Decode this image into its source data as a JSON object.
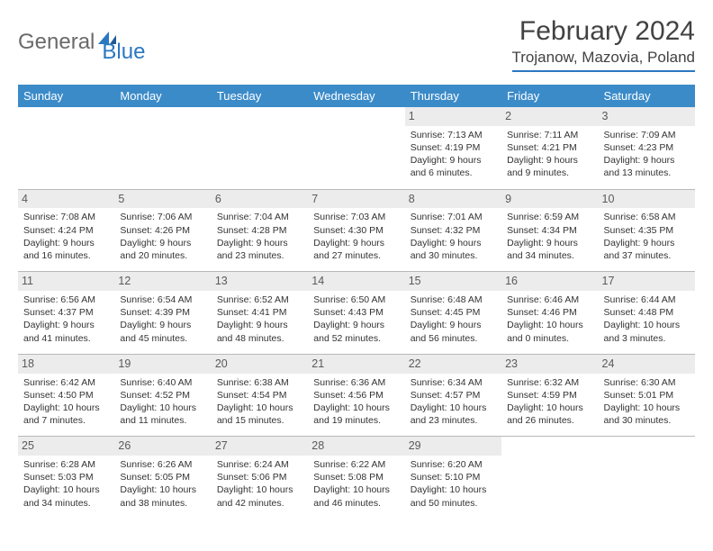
{
  "logo": {
    "part1": "General",
    "part2": "Blue"
  },
  "title": "February 2024",
  "location": "Trojanow, Mazovia, Poland",
  "colors": {
    "header_bg": "#3b8bc9",
    "header_text": "#ffffff",
    "accent": "#2b78c2",
    "daynum_bg": "#ececec",
    "text": "#333333",
    "divider": "#b9b9b9"
  },
  "weekdays": [
    "Sunday",
    "Monday",
    "Tuesday",
    "Wednesday",
    "Thursday",
    "Friday",
    "Saturday"
  ],
  "weeks": [
    [
      null,
      null,
      null,
      null,
      {
        "n": "1",
        "sr": "Sunrise: 7:13 AM",
        "ss": "Sunset: 4:19 PM",
        "dl1": "Daylight: 9 hours",
        "dl2": "and 6 minutes."
      },
      {
        "n": "2",
        "sr": "Sunrise: 7:11 AM",
        "ss": "Sunset: 4:21 PM",
        "dl1": "Daylight: 9 hours",
        "dl2": "and 9 minutes."
      },
      {
        "n": "3",
        "sr": "Sunrise: 7:09 AM",
        "ss": "Sunset: 4:23 PM",
        "dl1": "Daylight: 9 hours",
        "dl2": "and 13 minutes."
      }
    ],
    [
      {
        "n": "4",
        "sr": "Sunrise: 7:08 AM",
        "ss": "Sunset: 4:24 PM",
        "dl1": "Daylight: 9 hours",
        "dl2": "and 16 minutes."
      },
      {
        "n": "5",
        "sr": "Sunrise: 7:06 AM",
        "ss": "Sunset: 4:26 PM",
        "dl1": "Daylight: 9 hours",
        "dl2": "and 20 minutes."
      },
      {
        "n": "6",
        "sr": "Sunrise: 7:04 AM",
        "ss": "Sunset: 4:28 PM",
        "dl1": "Daylight: 9 hours",
        "dl2": "and 23 minutes."
      },
      {
        "n": "7",
        "sr": "Sunrise: 7:03 AM",
        "ss": "Sunset: 4:30 PM",
        "dl1": "Daylight: 9 hours",
        "dl2": "and 27 minutes."
      },
      {
        "n": "8",
        "sr": "Sunrise: 7:01 AM",
        "ss": "Sunset: 4:32 PM",
        "dl1": "Daylight: 9 hours",
        "dl2": "and 30 minutes."
      },
      {
        "n": "9",
        "sr": "Sunrise: 6:59 AM",
        "ss": "Sunset: 4:34 PM",
        "dl1": "Daylight: 9 hours",
        "dl2": "and 34 minutes."
      },
      {
        "n": "10",
        "sr": "Sunrise: 6:58 AM",
        "ss": "Sunset: 4:35 PM",
        "dl1": "Daylight: 9 hours",
        "dl2": "and 37 minutes."
      }
    ],
    [
      {
        "n": "11",
        "sr": "Sunrise: 6:56 AM",
        "ss": "Sunset: 4:37 PM",
        "dl1": "Daylight: 9 hours",
        "dl2": "and 41 minutes."
      },
      {
        "n": "12",
        "sr": "Sunrise: 6:54 AM",
        "ss": "Sunset: 4:39 PM",
        "dl1": "Daylight: 9 hours",
        "dl2": "and 45 minutes."
      },
      {
        "n": "13",
        "sr": "Sunrise: 6:52 AM",
        "ss": "Sunset: 4:41 PM",
        "dl1": "Daylight: 9 hours",
        "dl2": "and 48 minutes."
      },
      {
        "n": "14",
        "sr": "Sunrise: 6:50 AM",
        "ss": "Sunset: 4:43 PM",
        "dl1": "Daylight: 9 hours",
        "dl2": "and 52 minutes."
      },
      {
        "n": "15",
        "sr": "Sunrise: 6:48 AM",
        "ss": "Sunset: 4:45 PM",
        "dl1": "Daylight: 9 hours",
        "dl2": "and 56 minutes."
      },
      {
        "n": "16",
        "sr": "Sunrise: 6:46 AM",
        "ss": "Sunset: 4:46 PM",
        "dl1": "Daylight: 10 hours",
        "dl2": "and 0 minutes."
      },
      {
        "n": "17",
        "sr": "Sunrise: 6:44 AM",
        "ss": "Sunset: 4:48 PM",
        "dl1": "Daylight: 10 hours",
        "dl2": "and 3 minutes."
      }
    ],
    [
      {
        "n": "18",
        "sr": "Sunrise: 6:42 AM",
        "ss": "Sunset: 4:50 PM",
        "dl1": "Daylight: 10 hours",
        "dl2": "and 7 minutes."
      },
      {
        "n": "19",
        "sr": "Sunrise: 6:40 AM",
        "ss": "Sunset: 4:52 PM",
        "dl1": "Daylight: 10 hours",
        "dl2": "and 11 minutes."
      },
      {
        "n": "20",
        "sr": "Sunrise: 6:38 AM",
        "ss": "Sunset: 4:54 PM",
        "dl1": "Daylight: 10 hours",
        "dl2": "and 15 minutes."
      },
      {
        "n": "21",
        "sr": "Sunrise: 6:36 AM",
        "ss": "Sunset: 4:56 PM",
        "dl1": "Daylight: 10 hours",
        "dl2": "and 19 minutes."
      },
      {
        "n": "22",
        "sr": "Sunrise: 6:34 AM",
        "ss": "Sunset: 4:57 PM",
        "dl1": "Daylight: 10 hours",
        "dl2": "and 23 minutes."
      },
      {
        "n": "23",
        "sr": "Sunrise: 6:32 AM",
        "ss": "Sunset: 4:59 PM",
        "dl1": "Daylight: 10 hours",
        "dl2": "and 26 minutes."
      },
      {
        "n": "24",
        "sr": "Sunrise: 6:30 AM",
        "ss": "Sunset: 5:01 PM",
        "dl1": "Daylight: 10 hours",
        "dl2": "and 30 minutes."
      }
    ],
    [
      {
        "n": "25",
        "sr": "Sunrise: 6:28 AM",
        "ss": "Sunset: 5:03 PM",
        "dl1": "Daylight: 10 hours",
        "dl2": "and 34 minutes."
      },
      {
        "n": "26",
        "sr": "Sunrise: 6:26 AM",
        "ss": "Sunset: 5:05 PM",
        "dl1": "Daylight: 10 hours",
        "dl2": "and 38 minutes."
      },
      {
        "n": "27",
        "sr": "Sunrise: 6:24 AM",
        "ss": "Sunset: 5:06 PM",
        "dl1": "Daylight: 10 hours",
        "dl2": "and 42 minutes."
      },
      {
        "n": "28",
        "sr": "Sunrise: 6:22 AM",
        "ss": "Sunset: 5:08 PM",
        "dl1": "Daylight: 10 hours",
        "dl2": "and 46 minutes."
      },
      {
        "n": "29",
        "sr": "Sunrise: 6:20 AM",
        "ss": "Sunset: 5:10 PM",
        "dl1": "Daylight: 10 hours",
        "dl2": "and 50 minutes."
      },
      null,
      null
    ]
  ]
}
